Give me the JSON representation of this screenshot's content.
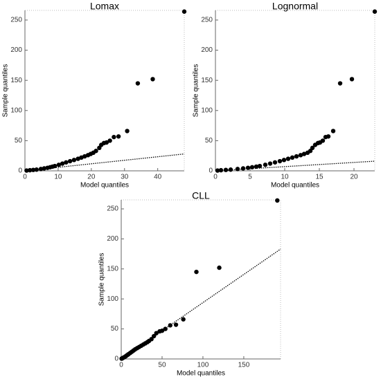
{
  "chart_data": [
    {
      "type": "scatter",
      "title": "Lomax",
      "x_label": "Model quantiles",
      "y_label": "Sample quantiles",
      "color": "#000000",
      "x": [
        0.5,
        1.5,
        2.5,
        3.5,
        4.8,
        5.8,
        6.8,
        7.6,
        8.3,
        9,
        10.2,
        11.3,
        12.4,
        13.6,
        14.8,
        16,
        17,
        18,
        19,
        19.8,
        20.6,
        21.4,
        22.4,
        23,
        23.8,
        24.6,
        25.6,
        26.8,
        28.2,
        30.8,
        34,
        38.5,
        48
      ],
      "y": [
        0.5,
        1,
        1.5,
        2,
        3,
        4,
        5,
        6,
        7,
        8,
        10,
        12,
        14,
        16,
        18,
        20,
        22,
        24,
        26,
        28,
        30,
        33,
        38,
        43,
        46,
        47,
        50,
        56,
        57,
        66,
        145,
        152,
        264
      ],
      "reference_line": {
        "x": [
          0,
          48
        ],
        "y": [
          0,
          28
        ]
      },
      "xlim": [
        0,
        48
      ],
      "ylim": [
        0,
        266
      ],
      "xticks": [
        0,
        10,
        20,
        30,
        40
      ],
      "yticks": [
        0,
        50,
        100,
        150,
        200,
        250
      ]
    },
    {
      "type": "scatter",
      "title": "Lognormal",
      "x_label": "Model quantiles",
      "y_label": "Sample quantiles",
      "color": "#000000",
      "x": [
        0.3,
        0.8,
        1.5,
        2.2,
        3.2,
        4,
        4.7,
        5.3,
        5.9,
        6.4,
        7.2,
        7.9,
        8.6,
        9.3,
        9.9,
        10.5,
        11.1,
        11.7,
        12.3,
        12.8,
        13.3,
        13.7,
        14,
        14.4,
        14.8,
        15.1,
        15.5,
        15.9,
        16.3,
        17,
        18,
        19.7,
        23
      ],
      "y": [
        0.5,
        1,
        1.5,
        2,
        3,
        4,
        5,
        6,
        7,
        8,
        10,
        12,
        14,
        16,
        18,
        20,
        22,
        24,
        26,
        28,
        30,
        33,
        38,
        43,
        46,
        47,
        50,
        56,
        57,
        66,
        145,
        152,
        264
      ],
      "reference_line": {
        "x": [
          0,
          23
        ],
        "y": [
          0,
          16
        ]
      },
      "xlim": [
        0,
        23
      ],
      "ylim": [
        0,
        266
      ],
      "xticks": [
        0,
        5,
        10,
        15,
        20
      ],
      "yticks": [
        0,
        50,
        100,
        150,
        200,
        250
      ]
    },
    {
      "type": "scatter",
      "title": "CLL",
      "x_label": "Model quantiles",
      "y_label": "Sample quantiles",
      "color": "#000000",
      "x": [
        0.5,
        1,
        1.8,
        2.5,
        3.8,
        5,
        6,
        7,
        8,
        9,
        11,
        13,
        15,
        17,
        19.5,
        22,
        24.5,
        27,
        29.5,
        32,
        34,
        37,
        40,
        43,
        47,
        50,
        54,
        60,
        67,
        76,
        92,
        120,
        191
      ],
      "y": [
        0.5,
        1,
        1.5,
        2,
        3,
        4,
        5,
        6,
        7,
        8,
        10,
        12,
        14,
        16,
        18,
        20,
        22,
        24,
        26,
        28,
        30,
        33,
        38,
        43,
        46,
        47,
        50,
        56,
        57,
        66,
        145,
        152,
        264
      ],
      "reference_line": {
        "x": [
          0,
          195
        ],
        "y": [
          0,
          183
        ]
      },
      "xlim": [
        0,
        195
      ],
      "ylim": [
        0,
        265
      ],
      "xticks": [
        0,
        50,
        100,
        150
      ],
      "yticks": [
        0,
        50,
        100,
        150,
        200,
        250
      ]
    }
  ]
}
